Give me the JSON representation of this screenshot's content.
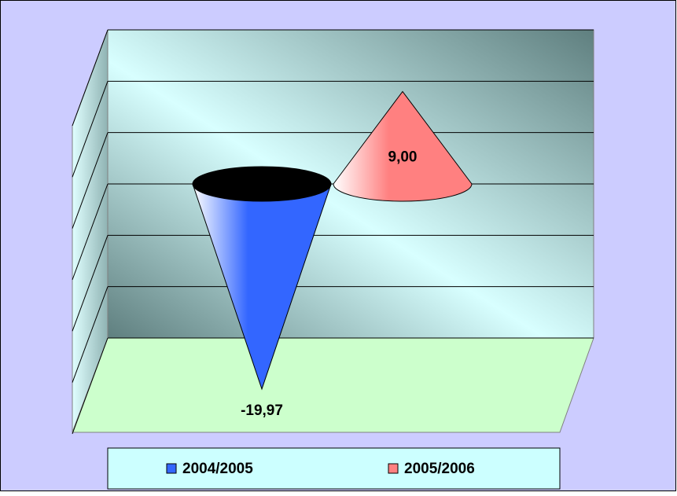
{
  "chart_data": {
    "type": "cone3d",
    "categories": [
      null
    ],
    "series": [
      {
        "name": "2004/2005",
        "color": "#3366ff",
        "values": [
          -19.97
        ],
        "value_labels": [
          "-19,97"
        ]
      },
      {
        "name": "2005/2006",
        "color": "#ff8080",
        "values": [
          9.0
        ],
        "value_labels": [
          "9,00"
        ]
      }
    ],
    "ylim": [
      -15,
      15
    ],
    "yticks": [
      -15,
      -10,
      -5,
      0,
      5,
      10,
      15
    ],
    "grid": true,
    "show_tick_labels": false,
    "legend": "bottom"
  }
}
